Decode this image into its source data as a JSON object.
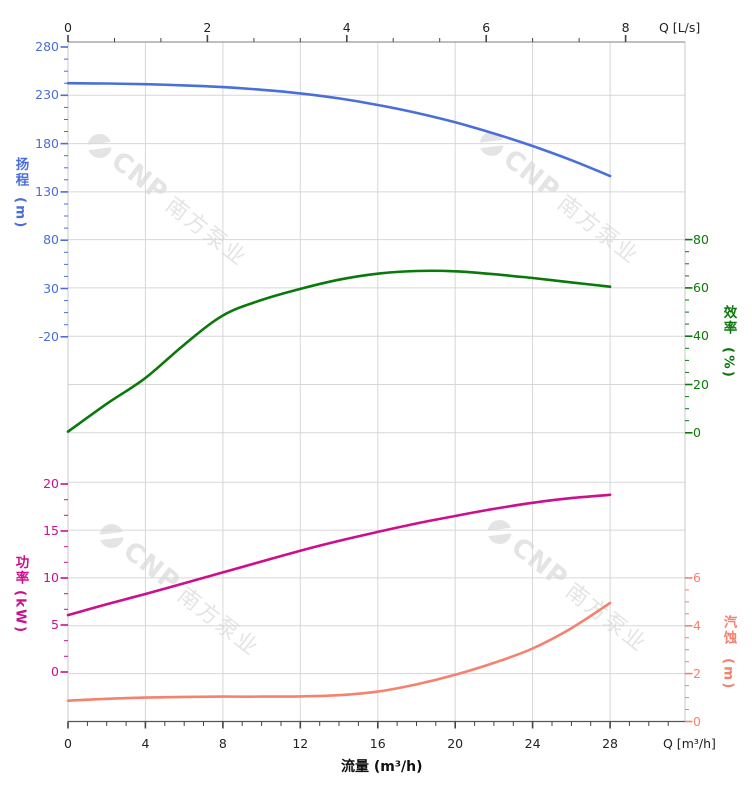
{
  "watermark": {
    "brand": "CNP",
    "company": "南方泵业"
  },
  "axis_titles": {
    "head": {
      "text": "扬程",
      "unit": "(m)"
    },
    "efficiency": {
      "text": "效率",
      "unit": "(%)"
    },
    "power": {
      "text": "功率",
      "unit": "(kW)"
    },
    "npsh": {
      "text": "汽蚀",
      "unit": "(m)"
    },
    "flow": "流量 (m³/h)",
    "q_top": "Q [L/s]",
    "q_bottom": "Q [m³/h]"
  },
  "colors": {
    "grid": "#d7d7d7",
    "border": "#c9c9c9",
    "axis_text": "#222222",
    "axis_tick": "#444444"
  },
  "chart_data": {
    "type": "line",
    "title": "",
    "xlabel": "流量 (m³/h)",
    "xlabel_secondary": "Q [L/s]",
    "x_range_m3h": [
      0,
      31.87
    ],
    "top_axis_unit_conversion": "1 L/s = 3.6 m³/h",
    "grid": "on",
    "x_m3h": [
      0,
      2,
      4,
      6,
      8,
      10,
      12,
      14,
      16,
      18,
      20,
      22,
      24,
      26,
      28
    ],
    "series": [
      {
        "name": "head",
        "label": "扬程",
        "unit": "m",
        "color": "#4a6fdb",
        "axis_ticks_range": [
          -20,
          280
        ],
        "values": [
          242.5,
          242.2,
          241.5,
          240.3,
          238.5,
          235.7,
          232.0,
          226.8,
          220.0,
          211.8,
          202.0,
          190.5,
          177.5,
          162.8,
          146.5
        ]
      },
      {
        "name": "efficiency",
        "label": "效率",
        "unit": "%",
        "color": "#0a780a",
        "axis_ticks_range": [
          0,
          80
        ],
        "values": [
          0.5,
          12.0,
          22.7,
          36.5,
          48.6,
          55.0,
          59.6,
          63.4,
          65.9,
          67.0,
          66.9,
          65.7,
          64.1,
          62.3,
          60.5
        ]
      },
      {
        "name": "power",
        "label": "功率",
        "unit": "kW",
        "color": "#cb0f8d",
        "axis_ticks_range": [
          0,
          20
        ],
        "values": [
          6.05,
          7.2,
          8.3,
          9.45,
          10.6,
          11.75,
          12.9,
          13.95,
          14.9,
          15.8,
          16.6,
          17.35,
          18.0,
          18.5,
          18.85
        ]
      },
      {
        "name": "npsh",
        "label": "汽蚀",
        "unit": "m",
        "color": "#f5826e",
        "axis_ticks_range": [
          0,
          6
        ],
        "values": [
          0.87,
          0.95,
          1.0,
          1.03,
          1.04,
          1.04,
          1.05,
          1.1,
          1.25,
          1.55,
          1.95,
          2.45,
          3.05,
          3.9,
          4.95
        ]
      }
    ],
    "axes": {
      "top": {
        "ticks": [
          "0",
          "2",
          "4",
          "6",
          "8"
        ]
      },
      "bottom": {
        "ticks": [
          "0",
          "4",
          "8",
          "12",
          "16",
          "20",
          "24",
          "28"
        ]
      },
      "head": {
        "ticks": [
          "280",
          "230",
          "180",
          "130",
          "80",
          "30",
          "-20"
        ]
      },
      "efficiency": {
        "ticks": [
          "80",
          "60",
          "40",
          "20",
          "0"
        ]
      },
      "power": {
        "ticks": [
          "20",
          "15",
          "10",
          "5",
          "0"
        ]
      },
      "npsh": {
        "ticks": [
          "6",
          "4",
          "2",
          "0"
        ]
      }
    }
  }
}
